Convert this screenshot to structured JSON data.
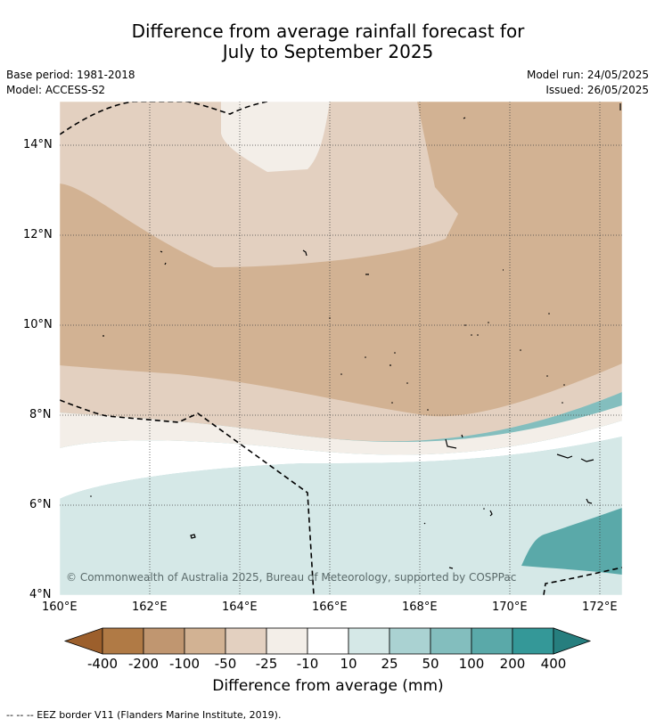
{
  "title": {
    "line1": "Difference from average rainfall forecast for",
    "line2": "July to September 2025"
  },
  "meta": {
    "base_period": "Base period: 1981-2018",
    "model": "Model: ACCESS-S2",
    "model_run": "Model run: 24/05/2025",
    "issued": "Issued: 26/05/2025"
  },
  "map": {
    "lat_labels": [
      "14°N",
      "12°N",
      "10°N",
      "8°N",
      "6°N",
      "4°N"
    ],
    "lon_labels": [
      "160°E",
      "162°E",
      "164°E",
      "166°E",
      "168°E",
      "170°E",
      "172°E"
    ],
    "copyright": "© Commonwealth of Australia 2025, Bureau of Meteorology, supported by COSPPac"
  },
  "colorbar": {
    "title": "Difference from average (mm)",
    "labels": [
      "-400",
      "-200",
      "-100",
      "-50",
      "-25",
      "-10",
      "10",
      "25",
      "50",
      "100",
      "200",
      "400"
    ],
    "colors": [
      "#9c5f2c",
      "#b07a45",
      "#c09670",
      "#d2b293",
      "#e3d0c0",
      "#f3eee8",
      "#ffffff",
      "#d5e8e7",
      "#aad2d2",
      "#83bebe",
      "#5aa9a9",
      "#349898",
      "#267e7e"
    ]
  },
  "footnote": "-- -- -- EEZ border V11 (Flanders Marine Institute, 2019)."
}
